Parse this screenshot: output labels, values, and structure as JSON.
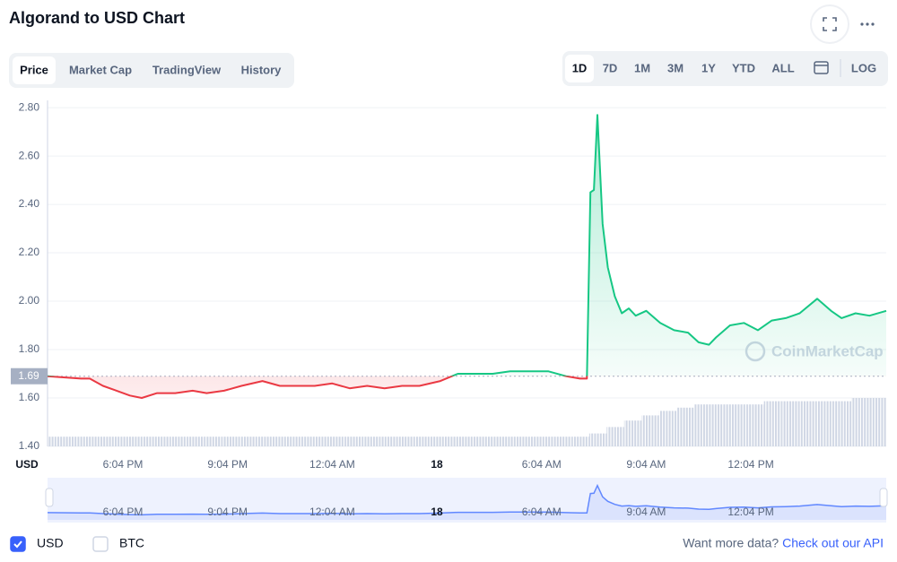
{
  "header": {
    "title": "Algorand to USD Chart"
  },
  "tabs": [
    "Price",
    "Market Cap",
    "TradingView",
    "History"
  ],
  "active_tab": 0,
  "ranges": [
    "1D",
    "7D",
    "1M",
    "3M",
    "1Y",
    "YTD",
    "ALL"
  ],
  "active_range": 0,
  "log_button": "LOG",
  "chart_data": {
    "type": "line",
    "x": [
      -2.16,
      -1.2,
      -0.95,
      -0.57,
      -0.18,
      0.2,
      0.54,
      0.98,
      1.5,
      2.0,
      2.4,
      2.9,
      3.4,
      4.0,
      4.5,
      5.0,
      5.5,
      6.0,
      6.5,
      7.0,
      7.5,
      8.0,
      8.5,
      9.1,
      9.6,
      10.1,
      10.6,
      11.1,
      11.6,
      12.2,
      12.7,
      13.1,
      13.3,
      13.4,
      13.5,
      13.6,
      13.75,
      13.9,
      14.1,
      14.3,
      14.5,
      14.7,
      15.0,
      15.4,
      15.8,
      16.2,
      16.5,
      16.8,
      17.0,
      17.4,
      17.8,
      18.2,
      18.6,
      19.0,
      19.4,
      19.9,
      20.3,
      20.6,
      21.0,
      21.4,
      21.88
    ],
    "values": [
      1.69,
      1.68,
      1.68,
      1.65,
      1.63,
      1.61,
      1.6,
      1.62,
      1.62,
      1.63,
      1.62,
      1.63,
      1.65,
      1.67,
      1.65,
      1.65,
      1.65,
      1.66,
      1.64,
      1.65,
      1.64,
      1.65,
      1.65,
      1.67,
      1.7,
      1.7,
      1.7,
      1.71,
      1.71,
      1.71,
      1.69,
      1.68,
      1.68,
      2.45,
      2.46,
      2.77,
      2.32,
      2.14,
      2.02,
      1.95,
      1.97,
      1.94,
      1.96,
      1.91,
      1.88,
      1.87,
      1.83,
      1.82,
      1.85,
      1.9,
      1.91,
      1.88,
      1.92,
      1.93,
      1.95,
      2.01,
      1.96,
      1.93,
      1.95,
      1.94,
      1.96
    ],
    "xlim": [
      -2.16,
      21.88
    ],
    "xticks": [
      {
        "value": 0,
        "label": "6:04 PM"
      },
      {
        "value": 3,
        "label": "9:04 PM"
      },
      {
        "value": 6,
        "label": "12:04 AM"
      },
      {
        "value": 9,
        "label": "18"
      },
      {
        "value": 12,
        "label": "6:04 AM"
      },
      {
        "value": 15,
        "label": "9:04 AM"
      },
      {
        "value": 18,
        "label": "12:04 PM"
      }
    ],
    "ylim": [
      1.4,
      2.83
    ],
    "yticks": [
      {
        "value": 1.4,
        "label": "1.40"
      },
      {
        "value": 1.6,
        "label": "1.60"
      },
      {
        "value": 1.8,
        "label": "1.80"
      },
      {
        "value": 2.0,
        "label": "2.00"
      },
      {
        "value": 2.2,
        "label": "2.20"
      },
      {
        "value": 2.4,
        "label": "2.40"
      },
      {
        "value": 2.6,
        "label": "2.60"
      },
      {
        "value": 2.8,
        "label": "2.80"
      }
    ],
    "baseline": 1.69,
    "up_color": "#16c784",
    "down_color": "#ea3943",
    "grid": true,
    "volume": {
      "color": "#cfd6e4",
      "values": [
        15,
        15,
        15,
        15,
        15,
        15,
        15,
        15,
        15,
        15,
        15,
        15,
        15,
        15,
        15,
        15,
        15,
        15,
        15,
        15,
        15,
        15,
        15,
        15,
        15,
        15,
        15,
        15,
        15,
        15,
        15,
        20,
        30,
        40,
        48,
        55,
        60,
        65,
        65,
        65,
        65,
        70,
        70,
        70,
        70,
        70,
        75,
        75
      ]
    },
    "currency_label": "USD",
    "watermark": "CoinMarketCap",
    "navigator_color": "#6188ff"
  },
  "currencies": [
    {
      "label": "USD",
      "checked": true
    },
    {
      "label": "BTC",
      "checked": false
    }
  ],
  "footer": {
    "question": "Want more data?",
    "link": "Check out our API"
  }
}
